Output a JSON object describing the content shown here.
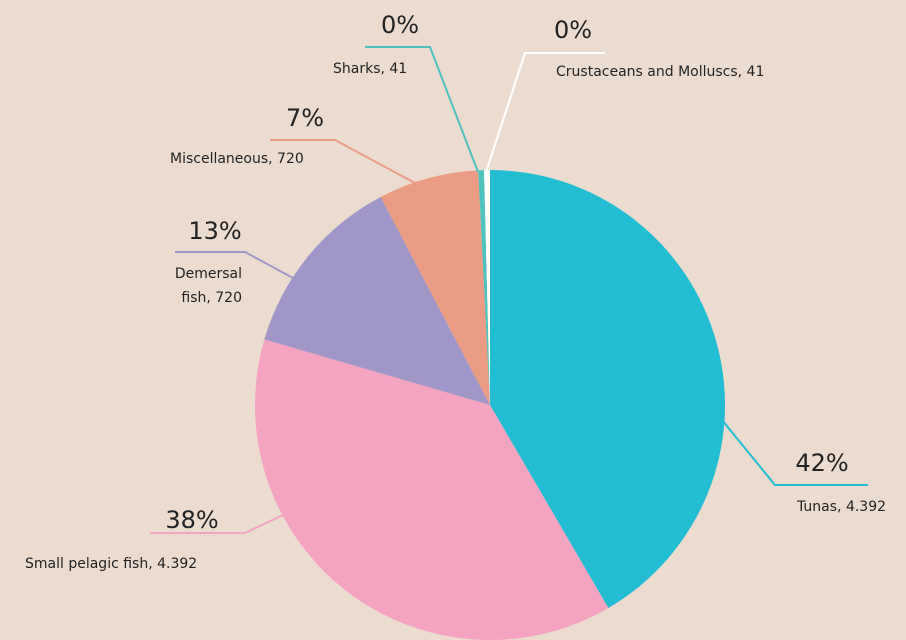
{
  "chart_data": {
    "type": "pie",
    "categories": [
      "Tunas, 4.392",
      "Small pelagic fish, 4.392",
      "Demersal fish, 720",
      "Miscellaneous, 720",
      "Sharks, 41",
      "Crustaceans and Molluscs, 41"
    ],
    "values": [
      41.6,
      37.9,
      12.8,
      6.9,
      0.4,
      0.4
    ],
    "value_labels": [
      "42%",
      "38%",
      "13%",
      "7%",
      "0%",
      "0%"
    ],
    "colors": [
      "#22bcd3",
      "#f4a3c0",
      "#a097c8",
      "#eb9c85",
      "#4fc2c0",
      "#ffffff"
    ]
  }
}
